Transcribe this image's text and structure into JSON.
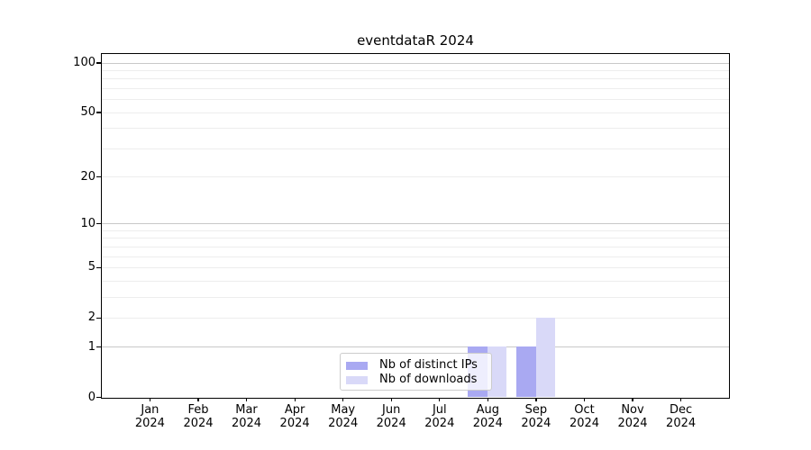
{
  "title": "eventdataR 2024",
  "chart_data": {
    "type": "bar",
    "title": "eventdataR 2024",
    "categories": [
      "Jan",
      "Feb",
      "Mar",
      "Apr",
      "May",
      "Jun",
      "Jul",
      "Aug",
      "Sep",
      "Oct",
      "Nov",
      "Dec"
    ],
    "category_year": "2024",
    "series": [
      {
        "name": "Nb of distinct IPs",
        "color": "#a9a9f2",
        "values": [
          0,
          0,
          0,
          0,
          0,
          0,
          0,
          1,
          1,
          0,
          0,
          0
        ]
      },
      {
        "name": "Nb of downloads",
        "color": "#d9d9f8",
        "values": [
          0,
          0,
          0,
          0,
          0,
          0,
          0,
          1,
          2,
          0,
          0,
          0
        ]
      }
    ],
    "yscale": "log1p",
    "yticks": [
      100,
      50,
      20,
      10,
      5,
      2,
      1,
      0
    ],
    "ylim": [
      0,
      114
    ],
    "xlabel": "",
    "ylabel": "",
    "grid": {
      "on": true,
      "major_values": [
        1,
        10,
        100
      ],
      "minor_values": [
        2,
        3,
        4,
        5,
        6,
        7,
        8,
        9,
        20,
        30,
        40,
        50,
        60,
        70,
        80,
        90
      ],
      "major_color": "#c8c8c8",
      "minor_color": "#ededed"
    },
    "legend": {
      "entries": [
        "Nb of distinct IPs",
        "Nb of downloads"
      ],
      "position": "inside-bottom-center"
    },
    "colors": {
      "axis": "#000000",
      "text": "#000000",
      "background": "#ffffff"
    }
  }
}
